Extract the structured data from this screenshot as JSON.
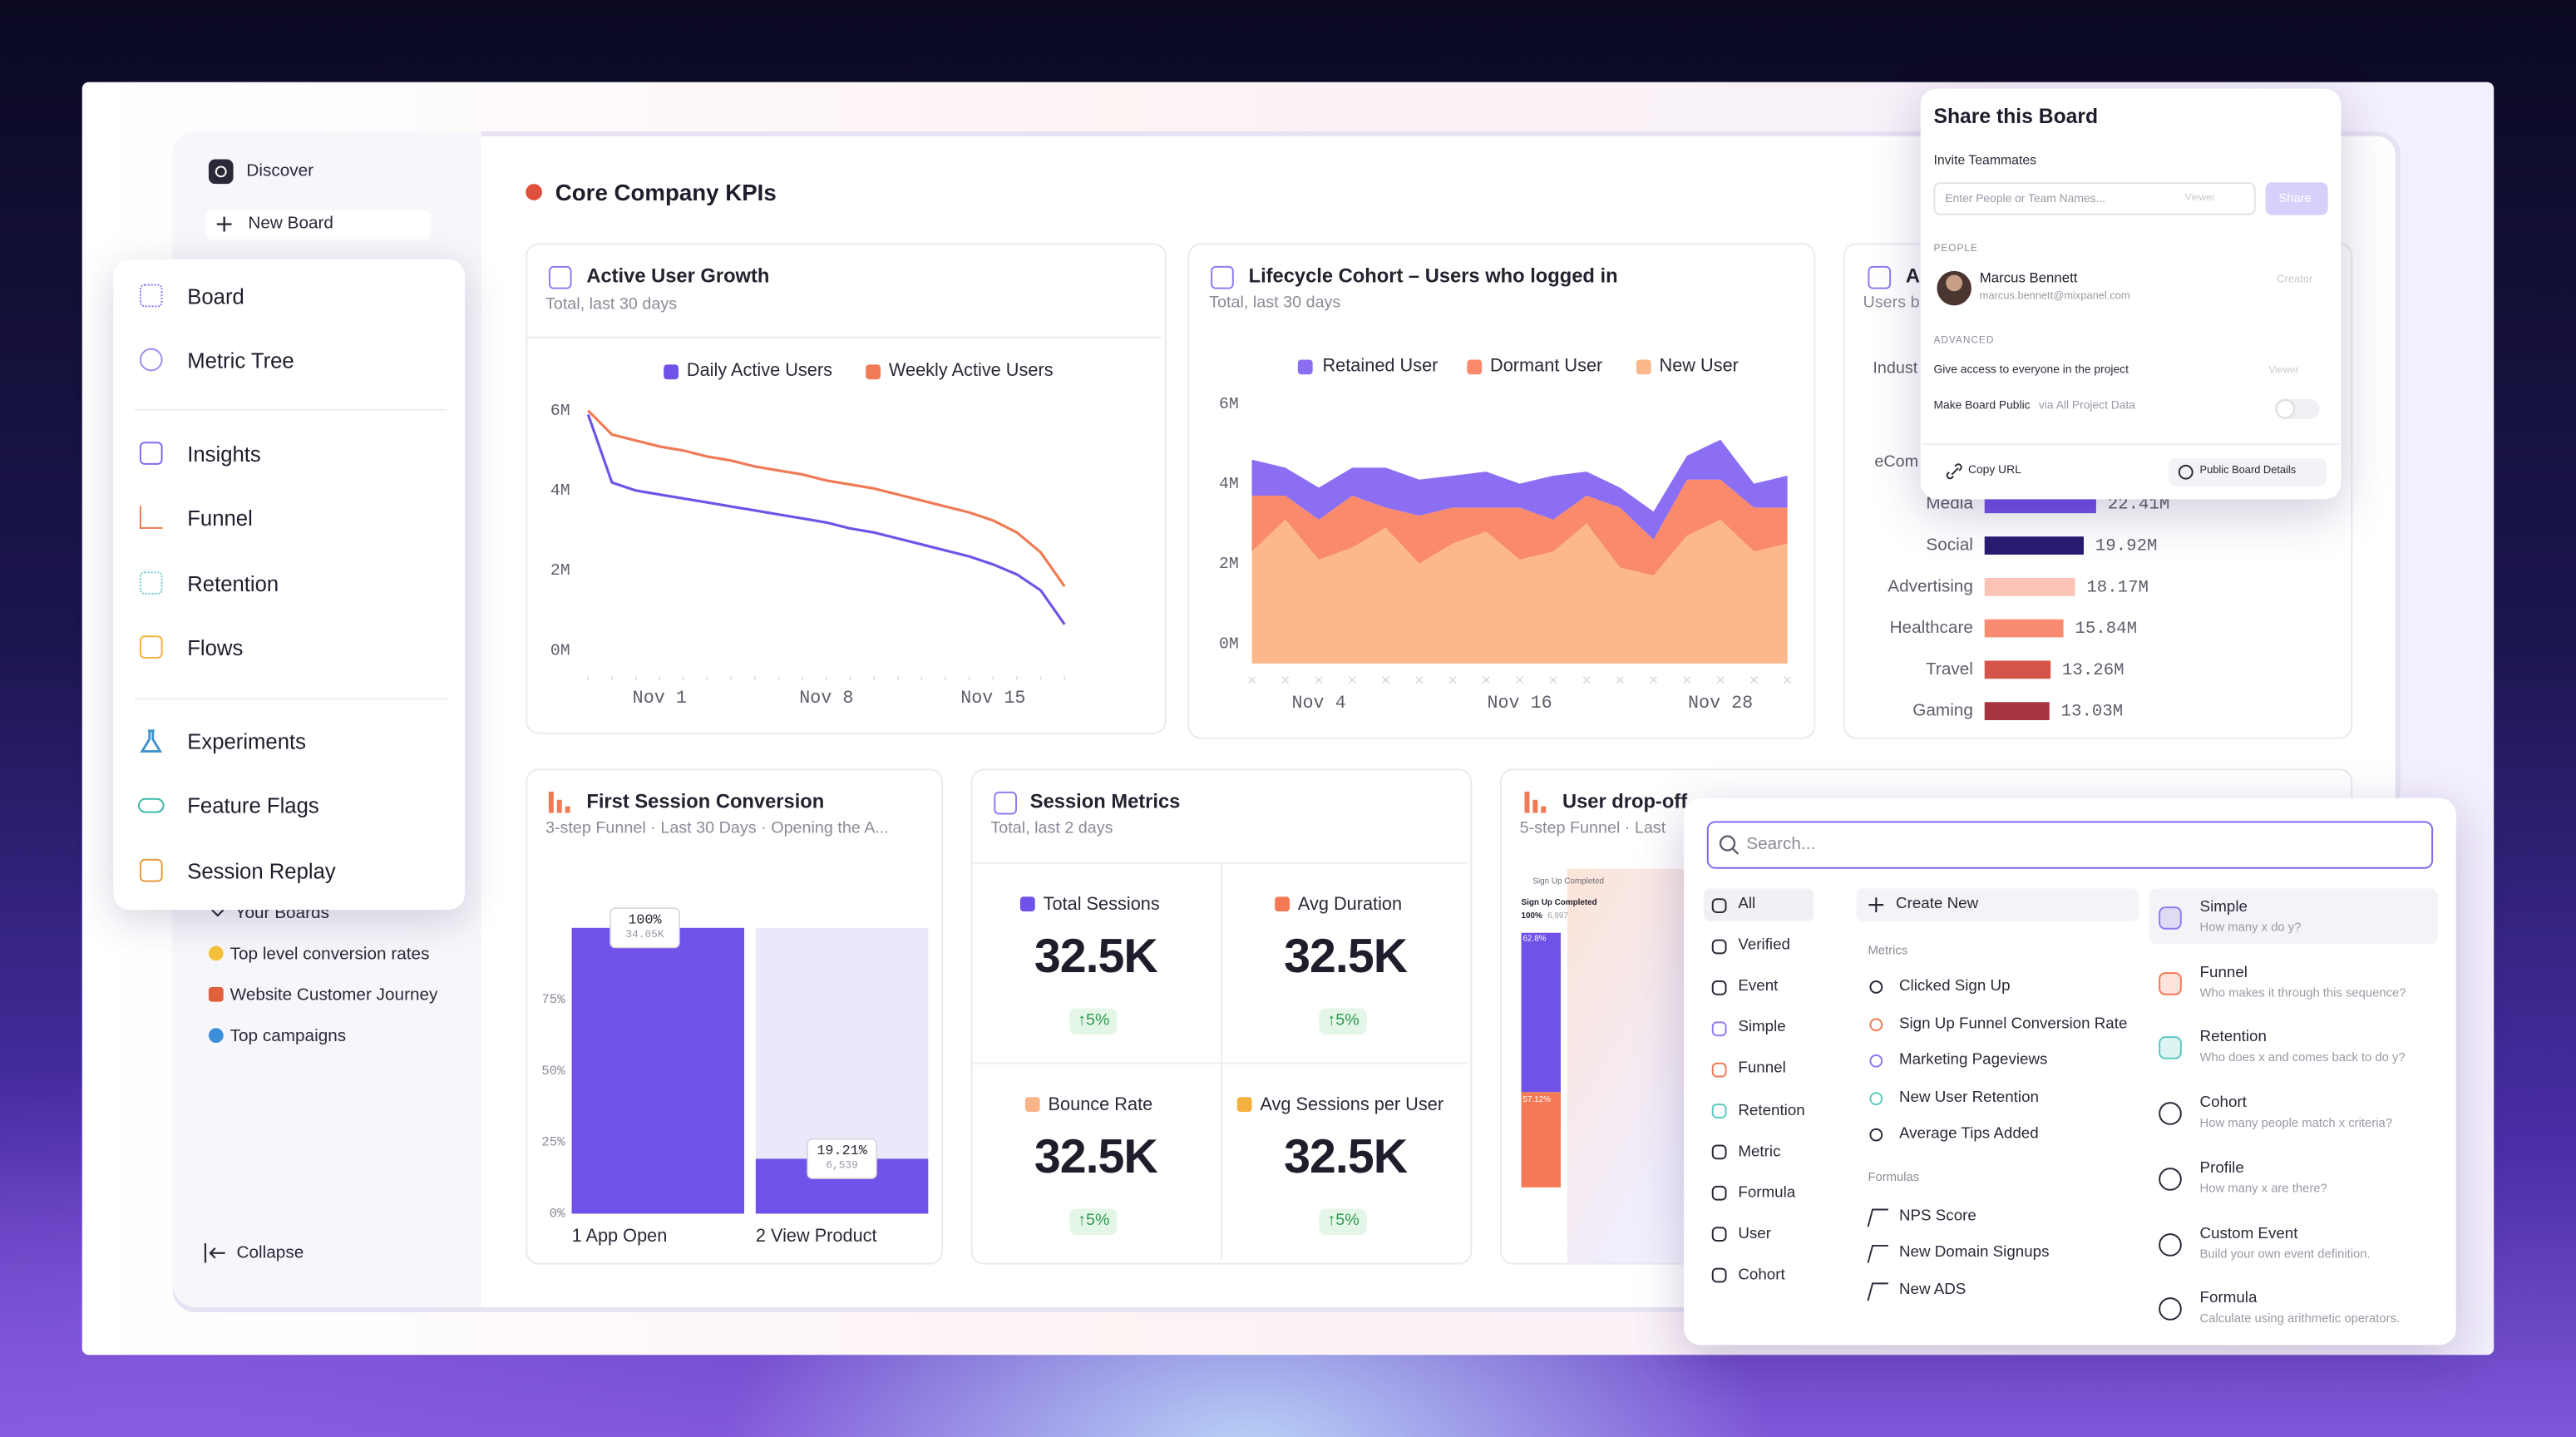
{
  "sidebar": {
    "discover": "Discover",
    "new_board": "New Board",
    "your_boards": "Your Boards",
    "boards": [
      "Top level conversion rates",
      "Website Customer Journey",
      "Top campaigns"
    ],
    "collapse": "Collapse"
  },
  "nav_menu": {
    "items": [
      "Board",
      "Metric Tree",
      "Insights",
      "Funnel",
      "Retention",
      "Flows",
      "Experiments",
      "Feature Flags",
      "Session Replay"
    ]
  },
  "dashboard": {
    "title": "Core Company KPIs"
  },
  "cards": [
    {
      "title": "Active User Growth",
      "subtitle": "Total, last 30 days",
      "chart": {
        "type": "line",
        "categories": [
          null,
          null,
          null,
          "Nov 1",
          null,
          null,
          null,
          null,
          null,
          null,
          "Nov 8",
          null,
          null,
          null,
          null,
          null,
          null,
          "Nov 15",
          null,
          null,
          null
        ],
        "series": [
          {
            "name": "Daily Active Users",
            "color": "#7152e8",
            "values": [
              5.9,
              4.2,
              4.0,
              3.9,
              3.8,
              3.7,
              3.6,
              3.5,
              3.4,
              3.3,
              3.2,
              3.05,
              2.95,
              2.8,
              2.65,
              2.5,
              2.35,
              2.15,
              1.9,
              1.5,
              0.65
            ]
          },
          {
            "name": "Weekly Active Users",
            "color": "#f07a55",
            "values": [
              6.0,
              5.4,
              5.25,
              5.1,
              5.0,
              4.85,
              4.75,
              4.6,
              4.5,
              4.4,
              4.25,
              4.15,
              4.05,
              3.9,
              3.75,
              3.6,
              3.45,
              3.25,
              2.95,
              2.45,
              1.6
            ]
          }
        ],
        "ylim": [
          0,
          6
        ],
        "yticks": [
          {
            "value": 0,
            "label": "0M"
          },
          {
            "value": 2,
            "label": "2M"
          },
          {
            "value": 4,
            "label": "4M"
          },
          {
            "value": 6,
            "label": "6M"
          }
        ]
      }
    },
    {
      "title": "Lifecycle Cohort – Users who logged in",
      "subtitle": "Total, last 30 days",
      "chart": {
        "type": "area",
        "stacked": true,
        "categories": [
          null,
          null,
          "Nov 4",
          null,
          null,
          null,
          null,
          null,
          "Nov 16",
          null,
          null,
          null,
          null,
          null,
          "Nov 28",
          null,
          null
        ],
        "series": [
          {
            "name": "Retained User",
            "color": "#8b6ef2",
            "values": [
              0.9,
              0.7,
              0.8,
              0.7,
              1.0,
              0.9,
              0.8,
              0.9,
              0.6,
              1.1,
              0.6,
              0.5,
              0.7,
              0.6,
              1.0,
              0.6,
              0.8
            ]
          },
          {
            "name": "Dormant User",
            "color": "#f98a6c",
            "values": [
              1.4,
              0.6,
              1.0,
              1.3,
              0.5,
              1.2,
              0.9,
              0.6,
              1.3,
              0.8,
              0.7,
              1.5,
              0.9,
              1.4,
              1.0,
              1.1,
              0.9
            ]
          },
          {
            "name": "New User",
            "color": "#fcb88a",
            "values": [
              2.8,
              3.6,
              2.6,
              2.9,
              3.4,
              2.5,
              3.0,
              3.3,
              2.6,
              2.8,
              3.5,
              2.4,
              2.2,
              3.2,
              3.6,
              2.8,
              3.0
            ]
          }
        ],
        "ylim": [
          0,
          6
        ],
        "yticks": [
          {
            "value": 0,
            "label": "0M"
          },
          {
            "value": 2,
            "label": "2M"
          },
          {
            "value": 4,
            "label": "4M"
          },
          {
            "value": 6,
            "label": "6M"
          }
        ]
      }
    },
    {
      "title": "A",
      "subtitle": "Users b",
      "label_fragments": [
        "Indust",
        "eCom"
      ],
      "chart": {
        "type": "hbar",
        "categories": [
          "Media",
          "Social",
          "Advertising",
          "Healthcare",
          "Travel",
          "Gaming"
        ],
        "values": [
          22.41,
          19.92,
          18.17,
          15.84,
          13.26,
          13.03
        ],
        "value_labels": [
          "22.41M",
          "19.92M",
          "18.17M",
          "15.84M",
          "13.26M",
          "13.03M"
        ],
        "colors": [
          "#7152e8",
          "#2a1a72",
          "#fbc3b5",
          "#f98b72",
          "#d4544a",
          "#a8343f"
        ]
      }
    },
    {
      "title": "First Session Conversion",
      "subtitle": "3-step Funnel · Last 30 Days · Opening the A...",
      "chart": {
        "type": "funnel",
        "categories": [
          "1 App Open",
          "2 View Product"
        ],
        "values": [
          100,
          19.21
        ],
        "value_labels": [
          "100%",
          "19.21%"
        ],
        "count_labels": [
          "34.05K",
          "6,539"
        ],
        "color": "#7152e8",
        "ylim": [
          0,
          100
        ],
        "yticks": [
          {
            "value": 0,
            "label": "0%"
          },
          {
            "value": 25,
            "label": "25%"
          },
          {
            "value": 50,
            "label": "50%"
          },
          {
            "value": 75,
            "label": "75%"
          }
        ]
      }
    },
    {
      "title": "Session Metrics",
      "subtitle": "Total, last 2 days",
      "metrics": [
        {
          "name": "Total Sessions",
          "value": "32.5K",
          "change": "↑5%",
          "color": "#7152e8"
        },
        {
          "name": "Avg Duration",
          "value": "32.5K",
          "change": "↑5%",
          "color": "#f47a55"
        },
        {
          "name": "Bounce Rate",
          "value": "32.5K",
          "change": "↑5%",
          "color": "#f9b48a"
        },
        {
          "name": "Avg Sessions per User",
          "value": "32.5K",
          "change": "↑5%",
          "color": "#f5b13d"
        }
      ]
    },
    {
      "title": "User drop-off",
      "subtitle": "5-step Funnel · Last",
      "legend_label": "Sign Up Completed",
      "step_label": "Sign Up Completed",
      "step_value": "100%",
      "step_count": "6,997",
      "bar_labels": [
        "62.8%",
        "57.12%"
      ]
    }
  ],
  "share_popup": {
    "title": "Share this Board",
    "invite_label": "Invite Teammates",
    "input_placeholder": "Enter People or Team Names...",
    "role": "Viewer",
    "share_button": "Share",
    "people_heading": "PEOPLE",
    "person": {
      "name": "Marcus Bennett",
      "email": "marcus.bennett@mixpanel.com",
      "role": "Creator"
    },
    "advanced_heading": "ADVANCED",
    "project_access": "Give access to everyone in the project",
    "project_role": "Viewer",
    "public_label": "Make Board Public",
    "public_note": "via All Project Data",
    "copy_url": "Copy URL",
    "public_details": "Public Board Details"
  },
  "search_popup": {
    "placeholder": "Search...",
    "filters": [
      "All",
      "Verified",
      "Event",
      "Simple",
      "Funnel",
      "Retention",
      "Metric",
      "Formula",
      "User",
      "Cohort"
    ],
    "create_new": "Create New",
    "metrics_heading": "Metrics",
    "metrics": [
      "Clicked Sign Up",
      "Sign Up Funnel Conversion Rate",
      "Marketing Pageviews",
      "New User Retention",
      "Average Tips Added"
    ],
    "formulas_heading": "Formulas",
    "formulas": [
      "NPS Score",
      "New Domain Signups",
      "New ADS"
    ],
    "types": [
      {
        "name": "Simple",
        "description": "How many x do y?"
      },
      {
        "name": "Funnel",
        "description": "Who makes it through this sequence?"
      },
      {
        "name": "Retention",
        "description": "Who does x and comes back to do y?"
      },
      {
        "name": "Cohort",
        "description": "How many people match x criteria?"
      },
      {
        "name": "Profile",
        "description": "How many x are there?"
      },
      {
        "name": "Custom Event",
        "description": "Build your own event definition."
      },
      {
        "name": "Formula",
        "description": "Calculate using arithmetic operators."
      }
    ]
  }
}
